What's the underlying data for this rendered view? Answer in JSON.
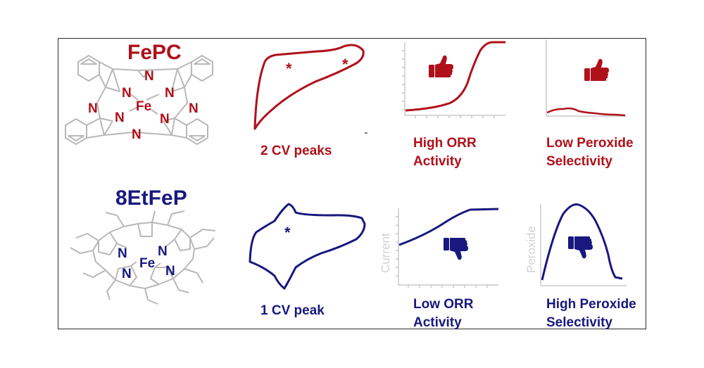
{
  "colors": {
    "fepc": "#b0101a",
    "etfep": "#18187e",
    "structure": "#b8b8b8",
    "axis": "#c8c8c8"
  },
  "fepc": {
    "title": "FePC",
    "cv_label": "2 CV peaks",
    "cv_marker": "*",
    "orr_line1": "High ORR",
    "orr_line2": "Activity",
    "peroxide_line1": "Low Peroxide",
    "peroxide_line2": "Selectivity",
    "orr_icon": "thumbs-up-icon",
    "peroxide_icon": "thumbs-up-icon",
    "atoms": {
      "N": "N",
      "Fe": "Fe"
    }
  },
  "etfep": {
    "title": "8EtFeP",
    "cv_label": "1 CV peak",
    "cv_marker": "*",
    "orr_line1": "Low ORR",
    "orr_line2": "Activity",
    "peroxide_line1": "High Peroxide",
    "peroxide_line2": "Selectivity",
    "orr_icon": "thumbs-down-icon",
    "peroxide_icon": "thumbs-down-icon",
    "atoms": {
      "N": "N",
      "Fe": "Fe"
    }
  },
  "axes": {
    "current_label": "Current",
    "peroxide_label": "Peroxide"
  }
}
